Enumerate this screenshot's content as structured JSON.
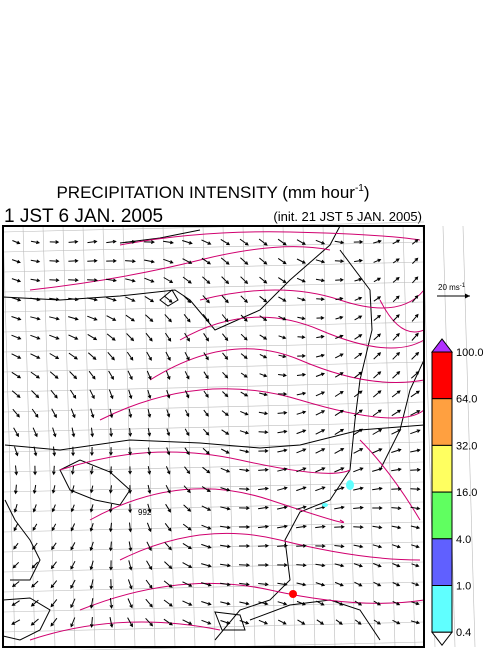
{
  "header": {
    "title": "PRECIPITATION INTENSITY (mm hour",
    "title_superscript": "-1",
    "title_close": ")",
    "valid_time": "1 JST 6 JAN. 2005",
    "init_time": "(init. 21 JST 5 JAN. 2005)"
  },
  "map": {
    "contour_label": "992"
  },
  "wind_scale": {
    "label": "20 ms",
    "superscript": "-1"
  },
  "colorbar": {
    "levels": [
      {
        "label": "100.0",
        "color": "#ff0000"
      },
      {
        "label": "64.0",
        "color": "#ffa040"
      },
      {
        "label": "32.0",
        "color": "#ffff60"
      },
      {
        "label": "16.0",
        "color": "#60ff60"
      },
      {
        "label": "4.0",
        "color": "#6060ff"
      },
      {
        "label": "1.0",
        "color": "#60ffff"
      },
      {
        "label": "0.4",
        "color": "#ffffff"
      }
    ],
    "top_color": "#b030ff"
  }
}
